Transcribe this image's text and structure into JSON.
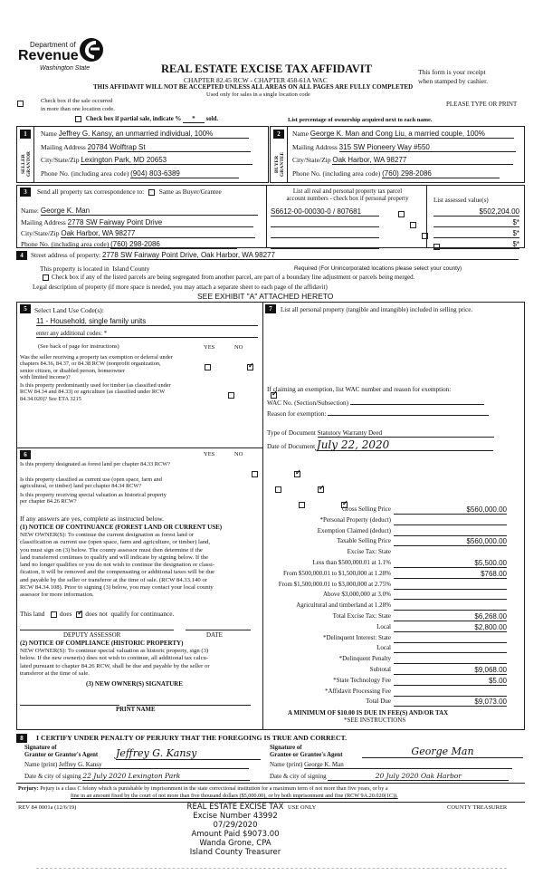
{
  "header": {
    "dept": "Department of",
    "revenue": "Revenue",
    "state": "Washington State",
    "title": "REAL ESTATE EXCISE TAX AFFIDAVIT",
    "chapter": "CHAPTER 82.45 RCW - CHAPTER 458-61A WAC",
    "warning": "THIS AFFIDAVIT WILL NOT BE ACCEPTED UNLESS ALL AREAS ON ALL PAGES ARE FULLY COMPLETED",
    "single_loc": "Used only for sales in a single location code",
    "receipt1": "This form is your receipt",
    "receipt2": "when stamped by cashier.",
    "please": "PLEASE TYPE OR PRINT",
    "multi_loc1": "Check box if the sale occurred",
    "multi_loc2": "in more than one location code.",
    "partial": "Check box if partial sale, indicate %",
    "partial_val": "*",
    "partial_sold": "sold.",
    "ownership": "List percentage of ownership acquired next to each name."
  },
  "seller": {
    "num": "1",
    "side": "SELLER GRANTOR",
    "name_label": "Name",
    "name": "Jeffrey G. Kansy, an unmarried individual, 100%",
    "addr_label": "Mailing Address",
    "addr": "20784 Wolftrap St",
    "city_label": "City/State/Zip",
    "city": "Lexington Park, MD  20653",
    "phone_label": "Phone No. (including area code)",
    "phone": "(904) 803-6389"
  },
  "buyer": {
    "num": "2",
    "side": "BUYER GRANTEE",
    "name_label": "Name",
    "name": "George K. Man and Cong Liu, a married couple, 100%",
    "addr_label": "Mailing Address",
    "addr": "315 SW Pioneery Way #550",
    "city_label": "City/State/Zip",
    "city": "Oak Harbor, WA  98277",
    "phone_label": "Phone No. (including area code)",
    "phone": "(760) 298-2086"
  },
  "corr": {
    "num": "3",
    "label": "Send all property tax correspondence to:",
    "same": "Same as Buyer/Grantee",
    "name_label": "Name:",
    "name": "George K. Man",
    "addr_label": "Mailing Address",
    "addr": "2778 SW Fairway Point Drive",
    "city_label": "City/State/Zip",
    "city": "Oak Harbor, WA  98277",
    "phone_label": "Phone No. (including area code)",
    "phone": "(760) 298-2086"
  },
  "parcels": {
    "h1": "List all real and personal property tax parcel",
    "h2": "account numbers - check box if personal property",
    "h3": "List assessed value(s)",
    "rows": [
      {
        "acct": "S6612-00-00030-0 / 807681",
        "value": "$502,204.00"
      },
      {
        "acct": "",
        "value": "$*"
      },
      {
        "acct": "",
        "value": "$*"
      },
      {
        "acct": "",
        "value": "$*"
      }
    ]
  },
  "property": {
    "num": "4",
    "street_label": "Street address of property:",
    "street": "2778 SW Fairway Point Drive, Oak Harbor, WA 98277",
    "loc_label": "This property is located in",
    "county": "Island County",
    "required": "Required (For Unincorporated locations please select your county)",
    "segregated": "Check box if any of the listed parcels are being segregated from another parcel, are part of a boundary line adjustment or parcels being merged.",
    "legal": "Legal description of property (if more space is needed, you may attach a separate sheet to each page of the affidavit)",
    "exhibit": "SEE EXHIBIT \"A\" ATTACHED HERETO"
  },
  "landuse": {
    "num": "5",
    "label": "Select Land Use Code(s):",
    "code": "11 - Household, single family units",
    "additional_label": "enter any additional codes:",
    "additional": "*",
    "instr": "(See back of page for instructions)",
    "yes": "YES",
    "no": "NO",
    "q": [
      {
        "t1": "Was the seller receiving a property tax exemption or deferral under",
        "t2": "chapters 84.36, 84.37, or 84.38 RCW (nonprofit organization,",
        "t3": "senior citizen, or disabled person, homeowner",
        "t4": "with limited income)?",
        "answer": "no"
      },
      {
        "t1": "Is this property predominantly used for timber (as classified under",
        "t2": "RCW 84.34 and 84.33) or agriculture (as classified under RCW",
        "t3": "84.34.020)? See ETA 3215",
        "t4": "",
        "answer": "no"
      }
    ]
  },
  "sec6": {
    "num": "6",
    "yes": "YES",
    "no": "NO",
    "q": [
      {
        "t1": "Is this property designated as forest land per chapter 84.33 RCW?",
        "t2": "",
        "answer": "no"
      },
      {
        "t1": "Is this property classified as current use (open space, farm and",
        "t2": "agricultural, or timber) land per chapter 84.34 RCW?",
        "answer": "no"
      },
      {
        "t1": "Is this property receiving special valuation as historical property",
        "t2": "per chapter 84.26 RCW?",
        "answer": "no"
      }
    ],
    "if_yes": "If any answers are yes, complete as instructed below.",
    "n1_title": "(1) NOTICE OF CONTINUANCE (FOREST LAND OR CURRENT USE)",
    "n1_lines": [
      "NEW OWNER(S):  To continue the current designation as forest land or",
      "classification as current use (open space, farm and agriculture, or timber) land,",
      "you must sign on (3) below.  The county assessor must then determine if the",
      "land transferred continues to qualify and will indicate by signing below. If the",
      "land no longer qualifies or you do not wish to continue the designation or classi-",
      "fication, it will be removed and the compensating or additional taxes will be due",
      "and payable by the seller or transferor at the time of sale.  (RCW 84.33.140 or",
      "RCW 84.34.108).  Prior to signing (3) below, you may contact your local county",
      "assessor for more information."
    ],
    "this_land": "This land",
    "does": "does",
    "does_not": "does not",
    "qualify": "qualify for continuance.",
    "deputy": "DEPUTY ASSESSOR",
    "date": "DATE",
    "n2_title": "(2) NOTICE OF COMPLIANCE (HISTORIC PROPERTY)",
    "n2_lines": [
      "NEW OWNER(S):  To continue special valuation as historic property, sign (3)",
      "below.  If the new owner(s) does not wish to continue, all additional tax calcu-",
      "lated pursuant to chapter 84.26 RCW, shall be due and payable by the seller or",
      "transferor at the time of sale."
    ],
    "n3": "(3) NEW OWNER(S) SIGNATURE",
    "print_name": "PRINT NAME"
  },
  "sec7": {
    "num": "7",
    "label": "List all personal property (tangible and intangible) included in selling price.",
    "exempt": "If claiming an exemption, list WAC number and reason for exemption:",
    "wac": "WAC No. (Section/Subsection)",
    "reason": "Reason for exemption:",
    "doc_type_label": "Type of Document",
    "doc_type": "Statutory Warranty Deed",
    "doc_date_label": "Date of Document",
    "doc_date": "July 22, 2020"
  },
  "tax": {
    "rows": [
      {
        "label": "Gross Selling Price",
        "value": "$560,000.00"
      },
      {
        "label": "*Personal Property (deduct)",
        "value": ""
      },
      {
        "label": "Exemption Claimed (deduct)",
        "value": ""
      },
      {
        "label": "Taxable Selling Price",
        "value": "$560,000.00"
      },
      {
        "label": "Excise Tax:  State",
        "value": "",
        "noline": true
      },
      {
        "label": "Less than $500,000.01 at 1.1%",
        "value": "$5,500.00"
      },
      {
        "label": "From $500,000.01 to $1,500,000 at 1.28%",
        "value": "$768.00"
      },
      {
        "label": "From $1,500,000.01 to $3,000,000 at 2.75%",
        "value": ""
      },
      {
        "label": "Above $3,000,000 at 3.0%",
        "value": ""
      },
      {
        "label": "Agricultural and timberland at 1.28%",
        "value": ""
      },
      {
        "label": "Total Excise Tax: State",
        "value": "$6,268.00"
      },
      {
        "label": "Local",
        "value": "$2,800.00"
      },
      {
        "label": "*Delinquent Interest:  State",
        "value": ""
      },
      {
        "label": "Local",
        "value": ""
      },
      {
        "label": "*Delinquent Penalty",
        "value": ""
      },
      {
        "label": "Subtotal",
        "value": "$9,068.00"
      },
      {
        "label": "*State Technology Fee",
        "value": "$5.00"
      },
      {
        "label": "*Affidavit Processing Fee",
        "value": ""
      },
      {
        "label": "Total Due",
        "value": "$9,073.00"
      }
    ],
    "minimum": "A MINIMUM OF $10.00 IS DUE IN FEE(S) AND/OR TAX",
    "see": "*SEE INSTRUCTIONS"
  },
  "sec8": {
    "num": "8",
    "certify": "I CERTIFY UNDER PENALTY OF PERJURY THAT THE FOREGOING IS TRUE AND CORRECT.",
    "grantor_sig_l1": "Signature of",
    "grantor_sig_l2": "Grantor or Grantor's Agent",
    "grantor_sig": "Jeffrey G. Kansy",
    "grantor_name_label": "Name (print)",
    "grantor_name": "Jeffrey G. Kansy",
    "grantor_date_label": "Date & city of signing",
    "grantor_date": "22 July 2020   Lexington Park",
    "grantee_sig_l1": "Signature of",
    "grantee_sig_l2": "Grantee or Grantee's Agent",
    "grantee_sig": "George Man",
    "grantee_name_label": "Name (print)",
    "grantee_name": "George K. Man",
    "grantee_date_label": "Date & city of signing",
    "grantee_date": "20 July 2020   Oak Harbor"
  },
  "perjury": {
    "label": "Perjury:",
    "l1": "Pejury is a class C felony which is punishable by imprisonment in the state correctional institution for a maximum term of not more than five years, or by a",
    "l2": "fine in an amount fixed by the court of not more than five thousand dollars ($5,000.00), or by both imprisonment and fine (RCW 9A.20.020(1C))."
  },
  "footer": {
    "rev": "REV 84 0001a (12/6/19)",
    "use_only": "USE ONLY",
    "treasurer": "COUNTY TREASURER"
  },
  "stamp": {
    "l1": "REAL ESTATE EXCISE TAX",
    "l2": "Excise Number 43992",
    "l3": "07/29/2020",
    "l4": "Amount Paid $9073.00",
    "l5": "Wanda Grone, CPA",
    "l6": "Island County Treasurer"
  }
}
